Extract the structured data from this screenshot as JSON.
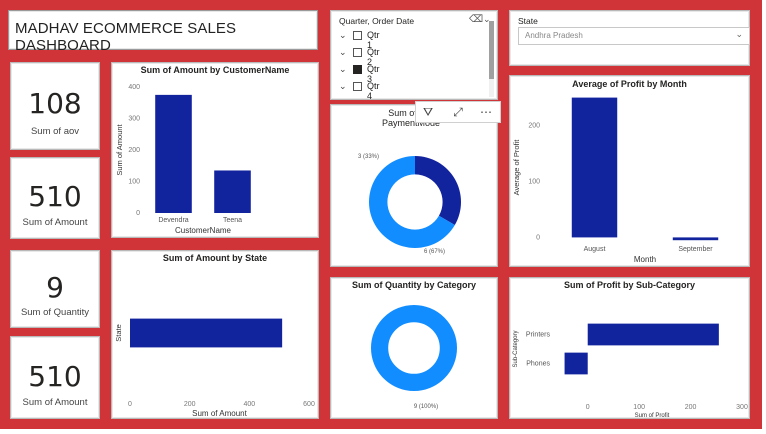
{
  "dashboard": {
    "title": "MADHAV ECOMMERCE SALES DASHBOARD"
  },
  "kpis": [
    {
      "value": "108",
      "label": "Sum of aov"
    },
    {
      "value": "510",
      "label": "Sum of Amount"
    },
    {
      "value": "9",
      "label": "Sum of Quantity"
    },
    {
      "value": "510",
      "label": "Sum of Amount"
    }
  ],
  "slicer_quarter": {
    "title": "Quarter, Order Date",
    "items": [
      {
        "label": "Qtr 1",
        "checked": false
      },
      {
        "label": "Qtr 2",
        "checked": false
      },
      {
        "label": "Qtr 3",
        "checked": true
      },
      {
        "label": "Qtr 4",
        "checked": false
      }
    ]
  },
  "slicer_state": {
    "title": "State",
    "selected": "Andhra Pradesh"
  },
  "colors": {
    "background": "#d13438",
    "dark_blue": "#12239e",
    "light_blue": "#118dff"
  },
  "chart_data": [
    {
      "id": "amount_by_customer",
      "type": "bar",
      "title": "Sum of Amount by CustomerName",
      "xlabel": "CustomerName",
      "ylabel": "Sum of Amount",
      "categories": [
        "Devendra",
        "Teena"
      ],
      "values": [
        375,
        135
      ],
      "ylim": [
        0,
        400
      ],
      "yticks": [
        "0",
        "100",
        "200",
        "300",
        "400"
      ]
    },
    {
      "id": "quantity_by_payment",
      "type": "pie",
      "title": "Sum of Quantity by PaymentMode",
      "title_visible": "Sum of Q... PaymentMode",
      "slices": [
        {
          "value": 3,
          "label": "3 (33%)",
          "color": "#12239e"
        },
        {
          "value": 6,
          "label": "6 (67%)",
          "color": "#118dff"
        }
      ]
    },
    {
      "id": "profit_by_month",
      "type": "bar",
      "title": "Average of Profit by Month",
      "xlabel": "Month",
      "ylabel": "Average of Profit",
      "categories": [
        "August",
        "September"
      ],
      "values": [
        250,
        -5
      ],
      "ylim": [
        -10,
        260
      ],
      "yticks": [
        "0",
        "100",
        "200"
      ]
    },
    {
      "id": "amount_by_state",
      "type": "bar",
      "orientation": "horizontal",
      "title": "Sum of Amount by State",
      "xlabel": "Sum of Amount",
      "ylabel": "State",
      "categories": [
        ""
      ],
      "values": [
        510
      ],
      "xlim": [
        0,
        600
      ],
      "xticks": [
        "0",
        "200",
        "400",
        "600"
      ]
    },
    {
      "id": "quantity_by_category",
      "type": "pie",
      "title": "Sum of Quantity by Category",
      "slices": [
        {
          "value": 9,
          "label": "9 (100%)",
          "color": "#118dff"
        }
      ]
    },
    {
      "id": "profit_by_subcategory",
      "type": "bar",
      "orientation": "horizontal",
      "title": "Sum of Profit by Sub-Category",
      "xlabel": "Sum of Profit",
      "ylabel": "Sub-Category",
      "categories": [
        "Printers",
        "Phones"
      ],
      "values": [
        255,
        -45
      ],
      "xlim": [
        -50,
        300
      ],
      "xticks": [
        "0",
        "100",
        "200",
        "300"
      ]
    }
  ]
}
